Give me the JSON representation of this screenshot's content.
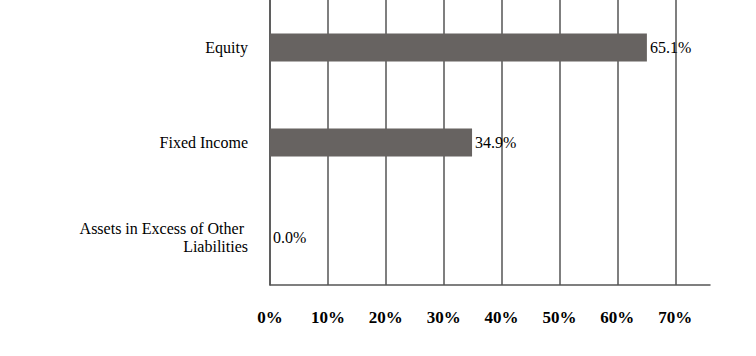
{
  "chart_data": {
    "type": "bar",
    "orientation": "horizontal",
    "categories": [
      "Equity",
      "Fixed Income",
      "Assets in Excess of Other Liabilities"
    ],
    "values": [
      65.1,
      34.9,
      0.0
    ],
    "value_labels": [
      "65.1%",
      "34.9%",
      "0.0%"
    ],
    "data_labels": true,
    "color": "#676361",
    "xlim": [
      0,
      76
    ],
    "xticks": [
      {
        "value": 0,
        "label": "0%"
      },
      {
        "value": 10,
        "label": "10%"
      },
      {
        "value": 20,
        "label": "20%"
      },
      {
        "value": 30,
        "label": "30%"
      },
      {
        "value": 40,
        "label": "40%"
      },
      {
        "value": 50,
        "label": "50%"
      },
      {
        "value": 60,
        "label": "60%"
      },
      {
        "value": 70,
        "label": "70%"
      }
    ],
    "grid": true
  }
}
